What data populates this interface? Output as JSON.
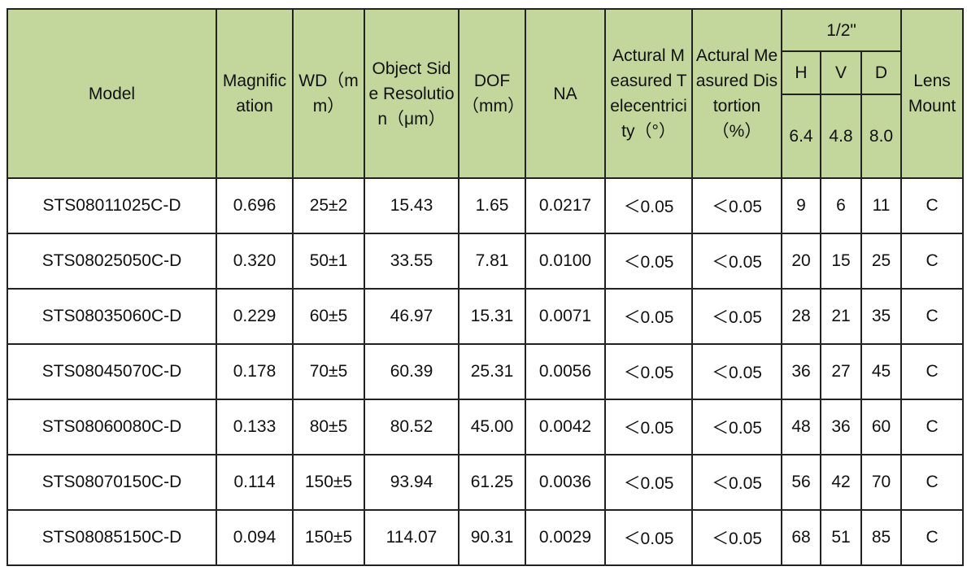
{
  "table": {
    "header": {
      "columns": [
        "Model",
        "Magnification",
        "WD（mm）",
        "Object Side Resolution（μm）",
        "DOF（mm）",
        "NA",
        "Actural Measured Telecentricity（°）",
        "Actural Measured Distortion（%）"
      ],
      "sensor": {
        "title": "1/2\"",
        "axes": [
          "H",
          "V",
          "D"
        ],
        "sizes": [
          "6.4",
          "4.8",
          "8.0"
        ]
      },
      "last": "Lens Mount"
    },
    "rows": [
      [
        "STS08011025C-D",
        "0.696",
        "25±2",
        "15.43",
        "1.65",
        "0.0217",
        "＜0.05",
        "＜0.05",
        "9",
        "6",
        "11",
        "C"
      ],
      [
        "STS08025050C-D",
        "0.320",
        "50±1",
        "33.55",
        "7.81",
        "0.0100",
        "＜0.05",
        "＜0.05",
        "20",
        "15",
        "25",
        "C"
      ],
      [
        "STS08035060C-D",
        "0.229",
        "60±5",
        "46.97",
        "15.31",
        "0.0071",
        "＜0.05",
        "＜0.05",
        "28",
        "21",
        "35",
        "C"
      ],
      [
        "STS08045070C-D",
        "0.178",
        "70±5",
        "60.39",
        "25.31",
        "0.0056",
        "＜0.05",
        "＜0.05",
        "36",
        "27",
        "45",
        "C"
      ],
      [
        "STS08060080C-D",
        "0.133",
        "80±5",
        "80.52",
        "45.00",
        "0.0042",
        "＜0.05",
        "＜0.05",
        "48",
        "36",
        "60",
        "C"
      ],
      [
        "STS08070150C-D",
        "0.114",
        "150±5",
        "93.94",
        "61.25",
        "0.0036",
        "＜0.05",
        "＜0.05",
        "56",
        "42",
        "70",
        "C"
      ],
      [
        "STS08085150C-D",
        "0.094",
        "150±5",
        "114.07",
        "90.31",
        "0.0029",
        "＜0.05",
        "＜0.05",
        "68",
        "51",
        "85",
        "C"
      ]
    ]
  }
}
